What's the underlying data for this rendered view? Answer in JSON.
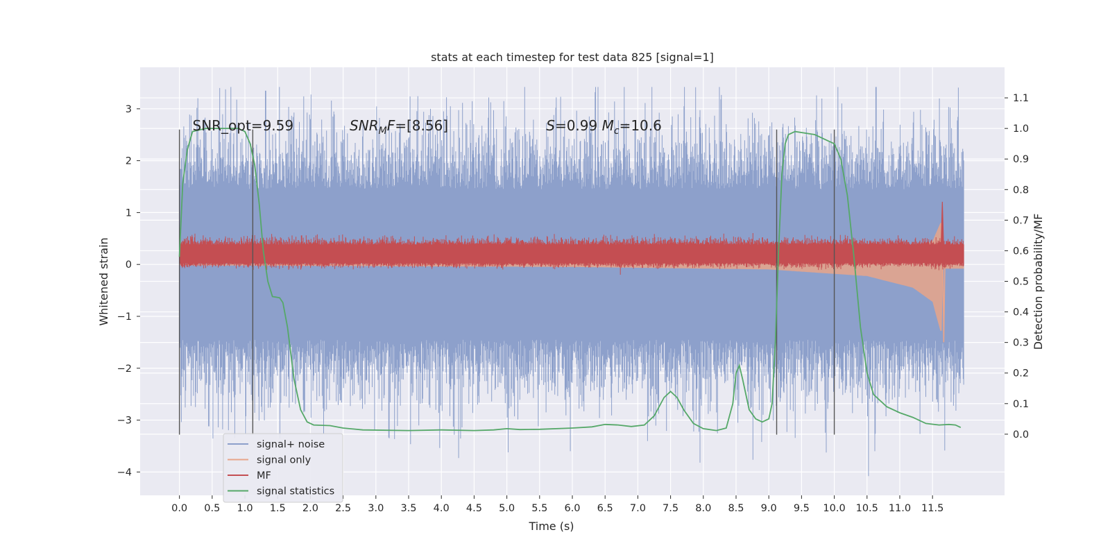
{
  "chart_data": {
    "type": "line",
    "title": "stats at each timestep for test data 825 [signal=1]",
    "xlabel": "Time (s)",
    "ylabel": "Whitened strain",
    "ylabel_right": "Detection probability/MF",
    "xlim": [
      -0.6,
      12.6
    ],
    "ylim": [
      -4.45,
      3.8
    ],
    "ylim_right": [
      -0.2,
      1.2
    ],
    "x_ticks": [
      0.0,
      0.5,
      1.0,
      1.5,
      2.0,
      2.5,
      3.0,
      3.5,
      4.0,
      4.5,
      5.0,
      5.5,
      6.0,
      6.5,
      7.0,
      7.5,
      8.0,
      8.5,
      9.0,
      9.5,
      10.0,
      10.5,
      11.0,
      11.5
    ],
    "x_tick_labels": [
      "0.0",
      "0.5",
      "1.0",
      "1.5",
      "2.0",
      "2.5",
      "3.0",
      "3.5",
      "4.0",
      "4.5",
      "5.0",
      "5.5",
      "6.0",
      "6.5",
      "7.0",
      "7.5",
      "8.0",
      "8.5",
      "9.0",
      "9.5",
      "10.0",
      "10.5",
      "11.0",
      "11.5"
    ],
    "y_ticks": [
      3,
      2,
      1,
      0,
      -1,
      -2,
      -3,
      -4
    ],
    "y_tick_labels": [
      "3",
      "2",
      "1",
      "0",
      "−1",
      "−2",
      "−3",
      "−4"
    ],
    "y_ticks_right": [
      1.1,
      1.0,
      0.9,
      0.8,
      0.7,
      0.6,
      0.5,
      0.4,
      0.3,
      0.2,
      0.1,
      0.0
    ],
    "y_tick_labels_right": [
      "1.1",
      "1.0",
      "0.9",
      "0.8",
      "0.7",
      "0.6",
      "0.5",
      "0.4",
      "0.3",
      "0.2",
      "0.1",
      "0.0"
    ],
    "grid": true,
    "legend_position": "lower-left",
    "annotations": [
      {
        "x": 0.2,
        "y": 2.58,
        "parts": [
          {
            "t": "SNR_opt=9.59"
          }
        ]
      },
      {
        "x": 2.6,
        "y": 2.58,
        "parts": [
          {
            "t": "SNR",
            "i": true
          },
          {
            "t": "M",
            "i": true,
            "sub": true
          },
          {
            "t": "F",
            "i": true
          },
          {
            "t": "=[8.56]"
          }
        ]
      },
      {
        "x": 5.6,
        "y": 2.58,
        "parts": [
          {
            "t": "S",
            "i": true
          },
          {
            "t": "=0.99   "
          },
          {
            "t": "M",
            "i": true
          },
          {
            "t": "c",
            "i": true,
            "sub": true
          },
          {
            "t": "=10.6"
          }
        ]
      }
    ],
    "vertical_lines": [
      {
        "x": 0.0,
        "y_range": [
          -3.28,
          2.6
        ]
      },
      {
        "x": 1.12,
        "y_range": [
          -3.28,
          2.6
        ]
      },
      {
        "x": 9.12,
        "y_range": [
          -3.28,
          2.6
        ]
      },
      {
        "x": 10.0,
        "y_range": [
          -3.28,
          2.6
        ]
      }
    ],
    "series": [
      {
        "name": "signal+ noise",
        "color": "#8da0cb",
        "kind": "dense-noise",
        "axis": "left",
        "x_range": [
          0.0,
          11.98
        ],
        "envelope_upper": 1.45,
        "envelope_lower": -1.45,
        "peak_max": 3.42,
        "peak_min": -4.1,
        "notable_spikes": [
          {
            "x": 1.53,
            "y": 3.42
          },
          {
            "x": 1.32,
            "y": 3.35
          },
          {
            "x": 6.35,
            "y": 3.32
          },
          {
            "x": 11.6,
            "y": 3.2
          },
          {
            "x": 0.45,
            "y": -3.12
          },
          {
            "x": 3.2,
            "y": -3.35
          },
          {
            "x": 7.95,
            "y": -3.82
          },
          {
            "x": 10.52,
            "y": -4.08
          },
          {
            "x": 10.62,
            "y": -3.6
          }
        ]
      },
      {
        "name": "signal only",
        "color": "#e8a58a",
        "kind": "chirp",
        "axis": "left",
        "x_range": [
          0.0,
          11.98
        ],
        "merger_time": 11.65,
        "amplitude_at": [
          [
            0.0,
            0.01
          ],
          [
            6.0,
            0.03
          ],
          [
            9.0,
            0.06
          ],
          [
            10.5,
            0.14
          ],
          [
            11.2,
            0.28
          ],
          [
            11.5,
            0.45
          ],
          [
            11.62,
            0.8
          ]
        ]
      },
      {
        "name": "MF",
        "color": "#c44e52",
        "kind": "dense-noise",
        "axis": "right",
        "x_range": [
          0.0,
          11.98
        ],
        "baseline": 0.585,
        "band": [
          0.56,
          0.62
        ],
        "peak": {
          "x": 11.65,
          "y": 0.76
        }
      },
      {
        "name": "signal statistics",
        "color": "#55a868",
        "kind": "line",
        "axis": "right",
        "points": [
          [
            0.0,
            0.58
          ],
          [
            0.05,
            0.82
          ],
          [
            0.12,
            0.93
          ],
          [
            0.2,
            0.99
          ],
          [
            0.4,
            1.0
          ],
          [
            0.9,
            1.0
          ],
          [
            1.0,
            0.99
          ],
          [
            1.08,
            0.95
          ],
          [
            1.15,
            0.88
          ],
          [
            1.22,
            0.75
          ],
          [
            1.28,
            0.6
          ],
          [
            1.35,
            0.5
          ],
          [
            1.42,
            0.45
          ],
          [
            1.48,
            0.448
          ],
          [
            1.53,
            0.446
          ],
          [
            1.58,
            0.43
          ],
          [
            1.65,
            0.35
          ],
          [
            1.75,
            0.18
          ],
          [
            1.85,
            0.08
          ],
          [
            1.95,
            0.04
          ],
          [
            2.05,
            0.03
          ],
          [
            2.3,
            0.028
          ],
          [
            2.5,
            0.02
          ],
          [
            2.8,
            0.014
          ],
          [
            3.5,
            0.012
          ],
          [
            4.0,
            0.014
          ],
          [
            4.5,
            0.012
          ],
          [
            4.8,
            0.014
          ],
          [
            5.0,
            0.018
          ],
          [
            5.2,
            0.015
          ],
          [
            5.5,
            0.016
          ],
          [
            6.0,
            0.02
          ],
          [
            6.3,
            0.024
          ],
          [
            6.5,
            0.032
          ],
          [
            6.7,
            0.03
          ],
          [
            6.9,
            0.025
          ],
          [
            7.1,
            0.03
          ],
          [
            7.25,
            0.06
          ],
          [
            7.4,
            0.12
          ],
          [
            7.5,
            0.14
          ],
          [
            7.6,
            0.12
          ],
          [
            7.7,
            0.08
          ],
          [
            7.85,
            0.035
          ],
          [
            8.0,
            0.018
          ],
          [
            8.2,
            0.012
          ],
          [
            8.35,
            0.02
          ],
          [
            8.45,
            0.1
          ],
          [
            8.5,
            0.2
          ],
          [
            8.55,
            0.225
          ],
          [
            8.6,
            0.18
          ],
          [
            8.7,
            0.08
          ],
          [
            8.8,
            0.05
          ],
          [
            8.9,
            0.04
          ],
          [
            9.0,
            0.05
          ],
          [
            9.05,
            0.1
          ],
          [
            9.1,
            0.3
          ],
          [
            9.15,
            0.6
          ],
          [
            9.2,
            0.85
          ],
          [
            9.25,
            0.95
          ],
          [
            9.3,
            0.98
          ],
          [
            9.4,
            0.99
          ],
          [
            9.7,
            0.98
          ],
          [
            9.9,
            0.96
          ],
          [
            10.0,
            0.95
          ],
          [
            10.1,
            0.9
          ],
          [
            10.2,
            0.78
          ],
          [
            10.3,
            0.58
          ],
          [
            10.4,
            0.35
          ],
          [
            10.5,
            0.2
          ],
          [
            10.6,
            0.13
          ],
          [
            10.8,
            0.09
          ],
          [
            11.0,
            0.07
          ],
          [
            11.2,
            0.055
          ],
          [
            11.4,
            0.035
          ],
          [
            11.6,
            0.03
          ],
          [
            11.75,
            0.032
          ],
          [
            11.85,
            0.03
          ],
          [
            11.93,
            0.022
          ]
        ]
      }
    ]
  }
}
